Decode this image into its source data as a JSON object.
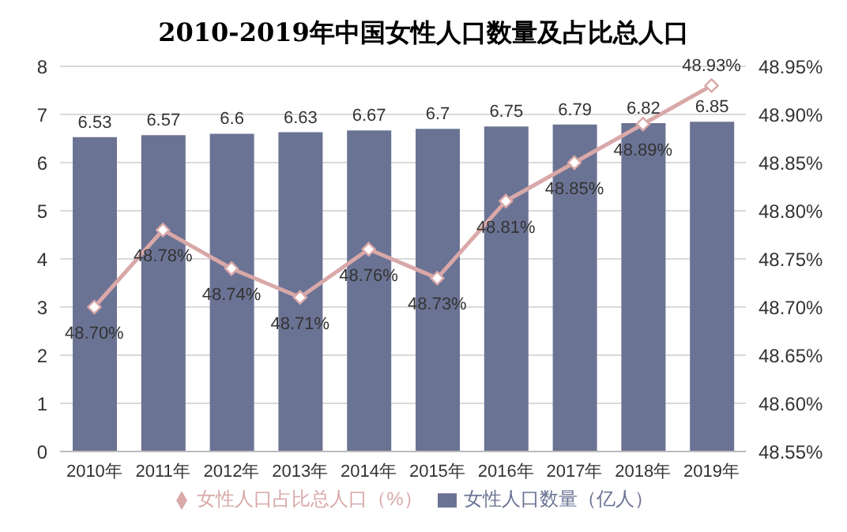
{
  "chart_data": {
    "type": "bar",
    "title": "2010-2019年中国女性人口数量及占比总人口",
    "categories": [
      "2010年",
      "2011年",
      "2012年",
      "2013年",
      "2014年",
      "2015年",
      "2016年",
      "2017年",
      "2018年",
      "2019年"
    ],
    "series": [
      {
        "name": "女性人口数量（亿人）",
        "color": "#6b7394",
        "values": [
          6.53,
          6.57,
          6.6,
          6.63,
          6.67,
          6.7,
          6.75,
          6.79,
          6.82,
          6.85
        ],
        "value_labels": [
          "6.53",
          "6.57",
          "6.6",
          "6.63",
          "6.67",
          "6.7",
          "6.75",
          "6.79",
          "6.82",
          "6.85"
        ]
      },
      {
        "name": "女性人口占比总人口（%）",
        "type": "line",
        "axis": "y2",
        "color": "#d9a8a8",
        "values": [
          48.7,
          48.78,
          48.74,
          48.71,
          48.76,
          48.73,
          48.81,
          48.85,
          48.89,
          48.93
        ],
        "value_labels": [
          "48.70%",
          "48.78%",
          "48.74%",
          "48.71%",
          "48.76%",
          "48.73%",
          "48.81%",
          "48.85%",
          "48.89%",
          "48.93%"
        ]
      }
    ],
    "ylim": [
      0,
      8
    ],
    "yticks": [
      0,
      1,
      2,
      3,
      4,
      5,
      6,
      7,
      8
    ],
    "y2lim": [
      48.55,
      48.95
    ],
    "y2ticks": [
      {
        "value": 48.55,
        "label": "48.55%"
      },
      {
        "value": 48.6,
        "label": "48.60%"
      },
      {
        "value": 48.65,
        "label": "48.65%"
      },
      {
        "value": 48.7,
        "label": "48.70%"
      },
      {
        "value": 48.75,
        "label": "48.75%"
      },
      {
        "value": 48.8,
        "label": "48.80%"
      },
      {
        "value": 48.85,
        "label": "48.85%"
      },
      {
        "value": 48.9,
        "label": "48.90%"
      },
      {
        "value": 48.95,
        "label": "48.95%"
      }
    ],
    "grid": "y",
    "legend": "bottom",
    "marker": "diamond"
  }
}
